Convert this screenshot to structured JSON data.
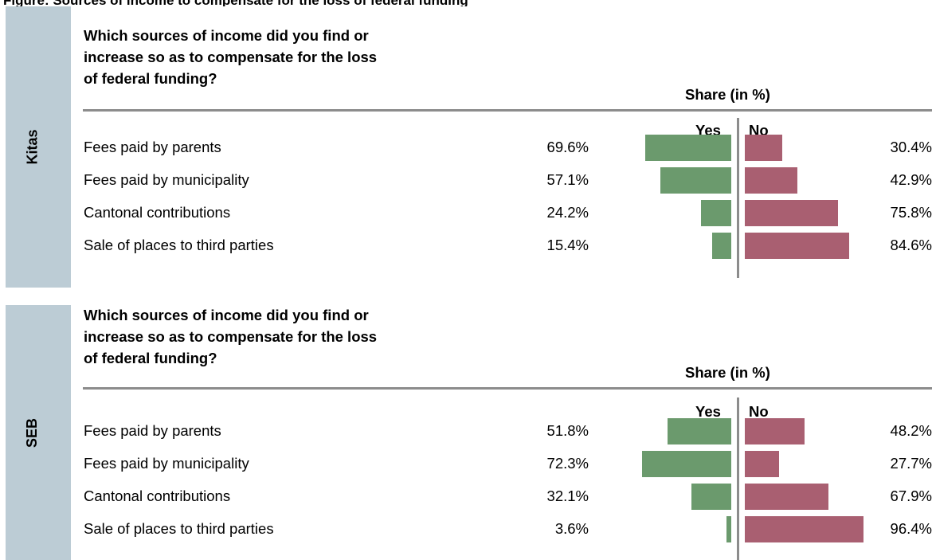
{
  "top_text": "Figure: Sources of income to compensate for the loss of federal funding",
  "chart_data": [
    {
      "type": "bar",
      "group": "Kitas",
      "question": [
        "Which sources of income did you find or",
        "increase so as to compensate for the loss",
        "of federal funding?"
      ],
      "share_title": "Share (in %)",
      "yes_label": "Yes",
      "no_label": "No",
      "categories": [
        "Fees paid by parents",
        "Fees paid by municipality",
        "Cantonal contributions",
        "Sale of places to third parties"
      ],
      "series": [
        {
          "name": "Yes",
          "values": [
            69.6,
            57.1,
            24.2,
            15.4
          ],
          "color": "#6b9a6d"
        },
        {
          "name": "No",
          "values": [
            30.4,
            42.9,
            75.8,
            84.6
          ],
          "color": "#a95f71"
        }
      ],
      "yes_labels": [
        "69.6%",
        "57.1%",
        "24.2%",
        "15.4%"
      ],
      "no_labels": [
        "30.4%",
        "42.9%",
        "75.8%",
        "84.6%"
      ]
    },
    {
      "type": "bar",
      "group": "SEB",
      "question": [
        "Which sources of income did you find or",
        "increase so as to compensate for the loss",
        "of federal funding?"
      ],
      "share_title": "Share (in %)",
      "yes_label": "Yes",
      "no_label": "No",
      "categories": [
        "Fees paid by parents",
        "Fees paid by municipality",
        "Cantonal contributions",
        "Sale of places to third parties"
      ],
      "series": [
        {
          "name": "Yes",
          "values": [
            51.8,
            72.3,
            32.1,
            3.6
          ],
          "color": "#6b9a6d"
        },
        {
          "name": "No",
          "values": [
            48.2,
            27.7,
            67.9,
            96.4
          ],
          "color": "#a95f71"
        }
      ],
      "yes_labels": [
        "51.8%",
        "72.3%",
        "32.1%",
        "3.6%"
      ],
      "no_labels": [
        "48.2%",
        "27.7%",
        "67.9%",
        "96.4%"
      ]
    }
  ]
}
